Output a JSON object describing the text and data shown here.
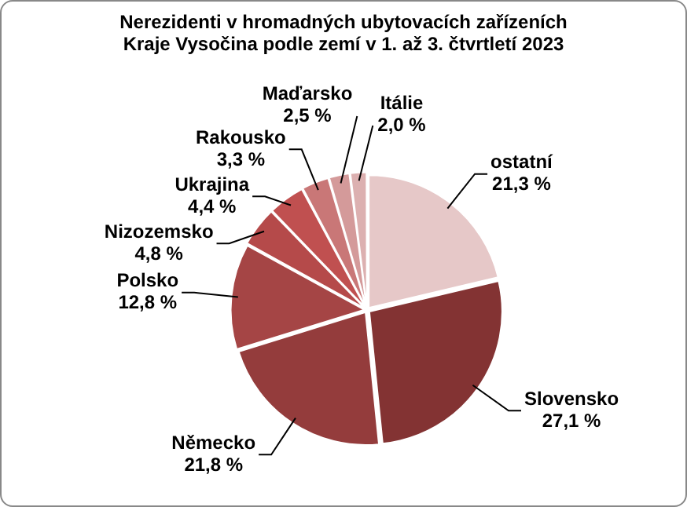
{
  "chart_data": {
    "type": "pie",
    "title": "Nerezidenti v hromadných ubytovacích zařízeních Kraje Vysočina podle zemí v 1. až 3. čtvrtletí 2023",
    "categories": [
      "ostatní",
      "Slovensko",
      "Německo",
      "Polsko",
      "Nizozemsko",
      "Ukrajina",
      "Rakousko",
      "Maďarsko",
      "Itálie"
    ],
    "values": [
      21.3,
      27.1,
      21.8,
      12.8,
      4.8,
      4.4,
      3.3,
      2.5,
      2.0
    ],
    "value_labels": [
      "21,3 %",
      "27,1 %",
      "21,8 %",
      "12,8 %",
      "4,8 %",
      "4,4 %",
      "3,3 %",
      "2,5 %",
      "2,0 %"
    ],
    "colors": [
      "#e6c8c8",
      "#833333",
      "#943c3c",
      "#a54545",
      "#b54a4a",
      "#c05050",
      "#c97777",
      "#d49a9a",
      "#dcb0b0"
    ],
    "legend": false
  }
}
